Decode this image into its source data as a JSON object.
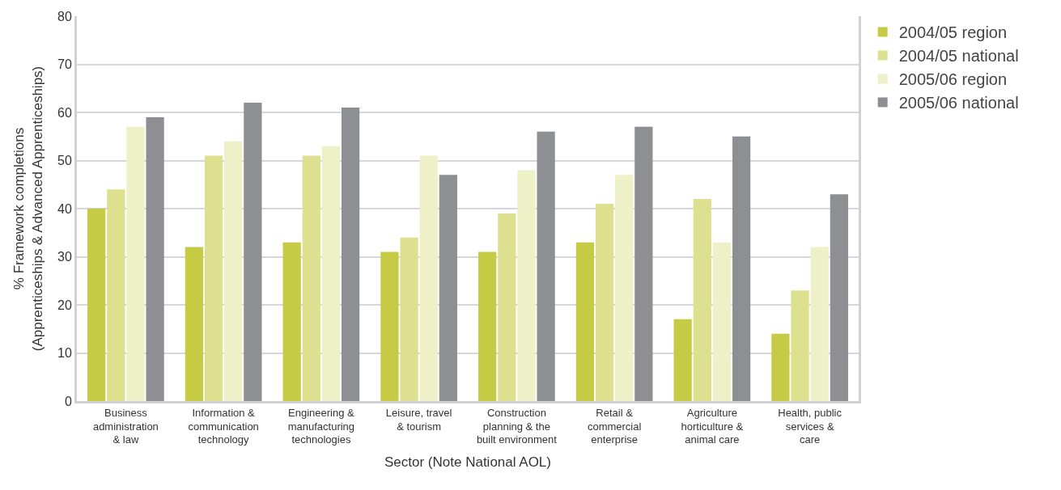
{
  "chart_data": {
    "type": "bar",
    "xlabel": "Sector (Note National AOL)",
    "ylabel": "% Framework completions\n(Apprenticeships & Advanced Apprenticeships)",
    "categories": [
      "Business\nadministration\n& law",
      "Information &\ncommunication\ntechnology",
      "Engineering &\nmanufacturing\ntechnologies",
      "Leisure, travel\n& tourism",
      "Construction\nplanning & the\nbuilt environment",
      "Retail &\ncommercial\nenterprise",
      "Agriculture\nhorticulture &\nanimal care",
      "Health, public\nservices &\ncare"
    ],
    "series": [
      {
        "name": "2004/05 region",
        "color": "#c5cb44",
        "values": [
          40,
          32,
          33,
          31,
          31,
          33,
          17,
          14
        ]
      },
      {
        "name": "2004/05 national",
        "color": "#dde08f",
        "values": [
          44,
          51,
          51,
          34,
          39,
          41,
          42,
          23
        ]
      },
      {
        "name": "2005/06 region",
        "color": "#eef0c8",
        "values": [
          57,
          54,
          53,
          51,
          48,
          47,
          33,
          32
        ]
      },
      {
        "name": "2005/06 national",
        "color": "#8d8f93",
        "values": [
          59,
          62,
          61,
          47,
          56,
          57,
          55,
          43
        ]
      }
    ],
    "ylim": [
      0,
      80
    ],
    "yticks": [
      0,
      10,
      20,
      30,
      40,
      50,
      60,
      70,
      80
    ],
    "grid": "y",
    "legend": "top right"
  }
}
